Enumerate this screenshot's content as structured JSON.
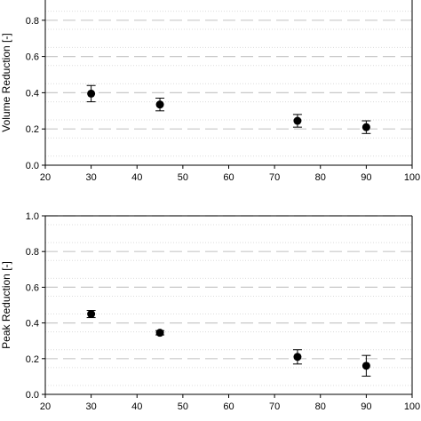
{
  "chart_data": [
    {
      "type": "scatter",
      "title": "",
      "xlabel": "",
      "ylabel": "Volume Reduction [-]",
      "xlim": [
        20,
        100
      ],
      "ylim": [
        0,
        1.0
      ],
      "x_ticks": [
        "20",
        "30",
        "40",
        "50",
        "60",
        "70",
        "80",
        "90",
        "100"
      ],
      "y_ticks": [
        "0.0",
        "0.2",
        "0.4",
        "0.6",
        "0.8"
      ],
      "grid": "horizontal dashed major, dotted minor",
      "points": [
        {
          "x": 30,
          "y": 0.395,
          "err_low": 0.045,
          "err_high": 0.045
        },
        {
          "x": 45,
          "y": 0.335,
          "err_low": 0.035,
          "err_high": 0.035
        },
        {
          "x": 75,
          "y": 0.245,
          "err_low": 0.035,
          "err_high": 0.035
        },
        {
          "x": 90,
          "y": 0.21,
          "err_low": 0.035,
          "err_high": 0.035
        }
      ],
      "marker_color": "#000000"
    },
    {
      "type": "scatter",
      "title": "",
      "xlabel": "",
      "ylabel": "Peak Reduction [-]",
      "xlim": [
        20,
        100
      ],
      "ylim": [
        0,
        1.0
      ],
      "x_ticks": [
        "20",
        "30",
        "40",
        "50",
        "60",
        "70",
        "80",
        "90",
        "100"
      ],
      "y_ticks": [
        "0.0",
        "0.2",
        "0.4",
        "0.6",
        "0.8",
        "1.0"
      ],
      "grid": "horizontal dashed major, dotted minor",
      "points": [
        {
          "x": 30,
          "y": 0.45,
          "err_low": 0.02,
          "err_high": 0.02
        },
        {
          "x": 45,
          "y": 0.345,
          "err_low": 0.012,
          "err_high": 0.012
        },
        {
          "x": 75,
          "y": 0.21,
          "err_low": 0.04,
          "err_high": 0.04
        },
        {
          "x": 90,
          "y": 0.16,
          "err_low": 0.058,
          "err_high": 0.058
        }
      ],
      "marker_color": "#000000"
    }
  ]
}
